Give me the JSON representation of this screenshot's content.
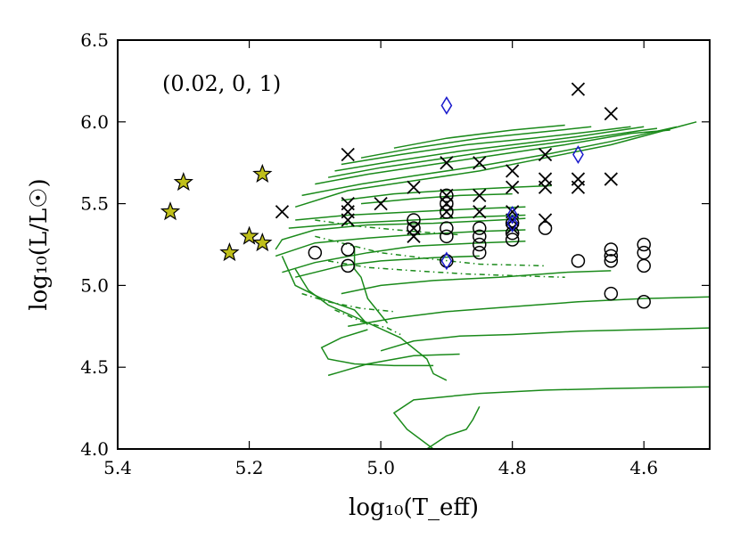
{
  "chart_data": {
    "type": "scatter",
    "title": "",
    "annotation": "(0.02, 0, 1)",
    "xlabel": "log₁₀(T_eff)",
    "ylabel": "log₁₀(L/L☉)",
    "x_inverted": true,
    "xlim": [
      5.4,
      4.5
    ],
    "ylim": [
      4.0,
      6.5
    ],
    "x_ticks": [
      5.4,
      5.2,
      5.0,
      4.8,
      4.6
    ],
    "x_tick_labels": [
      "5.4",
      "5.2",
      "5.0",
      "4.8",
      "4.6"
    ],
    "y_ticks": [
      4.0,
      4.5,
      5.0,
      5.5,
      6.0,
      6.5
    ],
    "y_tick_labels": [
      "4.0",
      "4.5",
      "5.0",
      "5.5",
      "6.0",
      "6.5"
    ],
    "colors": {
      "track": "#1a8a1a",
      "star_fill": "#bfbf1a",
      "diamond": "#1a1acc",
      "marker": "#000000"
    },
    "series": [
      {
        "name": "stars",
        "marker": "star",
        "points": [
          [
            5.32,
            5.45
          ],
          [
            5.3,
            5.63
          ],
          [
            5.18,
            5.68
          ],
          [
            5.2,
            5.3
          ],
          [
            5.18,
            5.26
          ],
          [
            5.23,
            5.2
          ]
        ]
      },
      {
        "name": "crosses",
        "marker": "x",
        "points": [
          [
            5.15,
            5.45
          ],
          [
            5.05,
            5.8
          ],
          [
            5.05,
            5.5
          ],
          [
            5.05,
            5.45
          ],
          [
            5.05,
            5.4
          ],
          [
            5.0,
            5.5
          ],
          [
            4.95,
            5.6
          ],
          [
            4.95,
            5.35
          ],
          [
            4.95,
            5.3
          ],
          [
            4.9,
            5.75
          ],
          [
            4.9,
            5.55
          ],
          [
            4.9,
            5.5
          ],
          [
            4.9,
            5.45
          ],
          [
            4.85,
            5.75
          ],
          [
            4.85,
            5.55
          ],
          [
            4.85,
            5.45
          ],
          [
            4.8,
            5.7
          ],
          [
            4.8,
            5.6
          ],
          [
            4.8,
            5.45
          ],
          [
            4.8,
            5.4
          ],
          [
            4.8,
            5.35
          ],
          [
            4.75,
            5.8
          ],
          [
            4.75,
            5.65
          ],
          [
            4.75,
            5.6
          ],
          [
            4.75,
            5.4
          ],
          [
            4.7,
            6.2
          ],
          [
            4.7,
            5.65
          ],
          [
            4.7,
            5.6
          ],
          [
            4.65,
            6.05
          ],
          [
            4.65,
            5.65
          ]
        ]
      },
      {
        "name": "circles",
        "marker": "o",
        "points": [
          [
            5.1,
            5.2
          ],
          [
            5.05,
            5.22
          ],
          [
            5.05,
            5.12
          ],
          [
            4.95,
            5.4
          ],
          [
            4.95,
            5.35
          ],
          [
            4.9,
            5.55
          ],
          [
            4.9,
            5.5
          ],
          [
            4.9,
            5.45
          ],
          [
            4.9,
            5.35
          ],
          [
            4.9,
            5.3
          ],
          [
            4.9,
            5.15
          ],
          [
            4.85,
            5.35
          ],
          [
            4.85,
            5.3
          ],
          [
            4.85,
            5.25
          ],
          [
            4.85,
            5.2
          ],
          [
            4.8,
            5.38
          ],
          [
            4.8,
            5.32
          ],
          [
            4.8,
            5.28
          ],
          [
            4.75,
            5.35
          ],
          [
            4.7,
            5.15
          ],
          [
            4.65,
            5.22
          ],
          [
            4.65,
            5.18
          ],
          [
            4.65,
            5.15
          ],
          [
            4.65,
            4.95
          ],
          [
            4.6,
            5.25
          ],
          [
            4.6,
            5.2
          ],
          [
            4.6,
            5.12
          ],
          [
            4.6,
            4.9
          ]
        ]
      },
      {
        "name": "diamonds",
        "marker": "diamond",
        "points": [
          [
            4.9,
            6.1
          ],
          [
            4.9,
            5.15
          ],
          [
            4.8,
            5.43
          ],
          [
            4.8,
            5.38
          ],
          [
            4.7,
            5.8
          ]
        ]
      },
      {
        "name": "tracks-solid",
        "style": "line",
        "lines": [
          [
            [
              5.13,
              5.48
            ],
            [
              5.05,
              5.58
            ],
            [
              4.95,
              5.64
            ],
            [
              4.85,
              5.7
            ],
            [
              4.75,
              5.78
            ],
            [
              4.65,
              5.86
            ],
            [
              4.52,
              6.0
            ]
          ],
          [
            [
              5.12,
              5.55
            ],
            [
              5.03,
              5.62
            ],
            [
              4.95,
              5.67
            ],
            [
              4.85,
              5.73
            ],
            [
              4.75,
              5.8
            ],
            [
              4.65,
              5.88
            ],
            [
              4.55,
              5.97
            ]
          ],
          [
            [
              5.1,
              5.62
            ],
            [
              5.02,
              5.68
            ],
            [
              4.92,
              5.74
            ],
            [
              4.82,
              5.8
            ],
            [
              4.72,
              5.86
            ],
            [
              4.62,
              5.93
            ],
            [
              4.56,
              5.95
            ]
          ],
          [
            [
              5.08,
              5.66
            ],
            [
              5.0,
              5.72
            ],
            [
              4.9,
              5.78
            ],
            [
              4.8,
              5.84
            ],
            [
              4.7,
              5.89
            ],
            [
              4.6,
              5.95
            ],
            [
              4.58,
              5.96
            ]
          ],
          [
            [
              5.07,
              5.7
            ],
            [
              4.98,
              5.76
            ],
            [
              4.88,
              5.82
            ],
            [
              4.78,
              5.87
            ],
            [
              4.7,
              5.91
            ],
            [
              4.6,
              5.97
            ]
          ],
          [
            [
              5.06,
              5.74
            ],
            [
              4.97,
              5.8
            ],
            [
              4.87,
              5.86
            ],
            [
              4.77,
              5.9
            ],
            [
              4.68,
              5.94
            ],
            [
              4.62,
              5.97
            ]
          ],
          [
            [
              5.03,
              5.78
            ],
            [
              4.95,
              5.84
            ],
            [
              4.85,
              5.9
            ],
            [
              4.75,
              5.94
            ],
            [
              4.68,
              5.97
            ]
          ],
          [
            [
              4.98,
              5.84
            ],
            [
              4.9,
              5.9
            ],
            [
              4.8,
              5.95
            ],
            [
              4.72,
              5.98
            ]
          ],
          [
            [
              5.06,
              5.52
            ],
            [
              4.98,
              5.56
            ],
            [
              4.9,
              5.58
            ],
            [
              4.8,
              5.6
            ],
            [
              4.74,
              5.61
            ]
          ],
          [
            [
              5.03,
              5.5
            ],
            [
              4.95,
              5.53
            ],
            [
              4.88,
              5.55
            ],
            [
              4.8,
              5.56
            ]
          ],
          [
            [
              5.13,
              5.4
            ],
            [
              5.05,
              5.43
            ],
            [
              4.95,
              5.45
            ],
            [
              4.85,
              5.47
            ],
            [
              4.78,
              5.48
            ]
          ],
          [
            [
              5.14,
              5.35
            ],
            [
              5.05,
              5.38
            ],
            [
              4.95,
              5.4
            ],
            [
              4.85,
              5.42
            ],
            [
              4.78,
              5.43
            ]
          ],
          [
            [
              5.16,
              5.22
            ],
            [
              5.15,
              5.28
            ],
            [
              5.1,
              5.34
            ],
            [
              5.02,
              5.37
            ],
            [
              4.92,
              5.38
            ],
            [
              4.82,
              5.4
            ],
            [
              4.78,
              5.41
            ]
          ],
          [
            [
              5.16,
              5.18
            ],
            [
              5.1,
              5.26
            ],
            [
              5.02,
              5.29
            ],
            [
              4.95,
              5.31
            ],
            [
              4.85,
              5.33
            ],
            [
              4.78,
              5.34
            ]
          ],
          [
            [
              5.15,
              5.08
            ],
            [
              5.1,
              5.14
            ],
            [
              5.02,
              5.2
            ],
            [
              4.95,
              5.24
            ],
            [
              4.85,
              5.26
            ],
            [
              4.78,
              5.27
            ]
          ],
          [
            [
              5.13,
              5.05
            ],
            [
              5.06,
              5.12
            ],
            [
              5.0,
              5.15
            ],
            [
              4.92,
              5.17
            ],
            [
              4.85,
              5.18
            ]
          ],
          [
            [
              5.15,
              5.18
            ],
            [
              5.13,
              5.0
            ],
            [
              5.09,
              4.92
            ],
            [
              5.04,
              4.85
            ],
            [
              5.02,
              4.76
            ]
          ],
          [
            [
              5.13,
              5.1
            ],
            [
              5.11,
              4.97
            ],
            [
              5.08,
              4.88
            ],
            [
              5.03,
              4.79
            ],
            [
              4.97,
              4.68
            ],
            [
              4.93,
              4.55
            ],
            [
              4.92,
              4.46
            ],
            [
              4.9,
              4.42
            ]
          ],
          [
            [
              5.04,
              5.24
            ],
            [
              5.04,
              5.1
            ],
            [
              5.03,
              5.05
            ],
            [
              5.02,
              4.92
            ],
            [
              5.0,
              4.82
            ],
            [
              4.99,
              4.77
            ]
          ],
          [
            [
              5.02,
              4.73
            ],
            [
              5.06,
              4.68
            ],
            [
              5.09,
              4.62
            ],
            [
              5.08,
              4.55
            ],
            [
              5.04,
              4.52
            ],
            [
              4.98,
              4.51
            ],
            [
              4.92,
              4.51
            ]
          ],
          [
            [
              5.06,
              4.95
            ],
            [
              5.0,
              5.0
            ],
            [
              4.92,
              5.03
            ],
            [
              4.82,
              5.05
            ],
            [
              4.72,
              5.08
            ],
            [
              4.65,
              5.09
            ]
          ],
          [
            [
              5.05,
              4.75
            ],
            [
              4.98,
              4.8
            ],
            [
              4.9,
              4.84
            ],
            [
              4.8,
              4.87
            ],
            [
              4.7,
              4.9
            ],
            [
              4.6,
              4.92
            ],
            [
              4.5,
              4.93
            ]
          ],
          [
            [
              5.0,
              4.6
            ],
            [
              4.95,
              4.66
            ],
            [
              4.88,
              4.69
            ],
            [
              4.8,
              4.7
            ],
            [
              4.7,
              4.72
            ],
            [
              4.6,
              4.73
            ],
            [
              4.5,
              4.74
            ]
          ],
          [
            [
              5.08,
              4.45
            ],
            [
              5.02,
              4.52
            ],
            [
              4.95,
              4.57
            ],
            [
              4.88,
              4.58
            ]
          ],
          [
            [
              4.92,
              4.0
            ],
            [
              4.96,
              4.12
            ],
            [
              4.98,
              4.22
            ],
            [
              4.95,
              4.3
            ],
            [
              4.85,
              4.34
            ],
            [
              4.75,
              4.36
            ],
            [
              4.65,
              4.37
            ],
            [
              4.5,
              4.38
            ]
          ],
          [
            [
              4.93,
              4.0
            ],
            [
              4.9,
              4.08
            ],
            [
              4.87,
              4.12
            ],
            [
              4.86,
              4.18
            ],
            [
              4.85,
              4.26
            ]
          ]
        ]
      },
      {
        "name": "tracks-dashed",
        "style": "dashed",
        "lines": [
          [
            [
              5.1,
              5.3
            ],
            [
              5.05,
              5.25
            ],
            [
              5.0,
              5.2
            ],
            [
              4.92,
              5.16
            ],
            [
              4.85,
              5.13
            ],
            [
              4.75,
              5.12
            ]
          ],
          [
            [
              5.08,
              5.15
            ],
            [
              5.02,
              5.11
            ],
            [
              4.95,
              5.09
            ],
            [
              4.87,
              5.07
            ],
            [
              4.8,
              5.06
            ],
            [
              4.72,
              5.05
            ]
          ],
          [
            [
              5.12,
              4.95
            ],
            [
              5.08,
              4.9
            ],
            [
              5.03,
              4.86
            ],
            [
              4.98,
              4.84
            ]
          ],
          [
            [
              5.07,
              4.85
            ],
            [
              5.03,
              4.78
            ],
            [
              4.99,
              4.74
            ],
            [
              4.97,
              4.7
            ]
          ],
          [
            [
              5.1,
              5.4
            ],
            [
              5.03,
              5.36
            ],
            [
              4.95,
              5.33
            ],
            [
              4.88,
              5.31
            ]
          ]
        ]
      }
    ]
  }
}
